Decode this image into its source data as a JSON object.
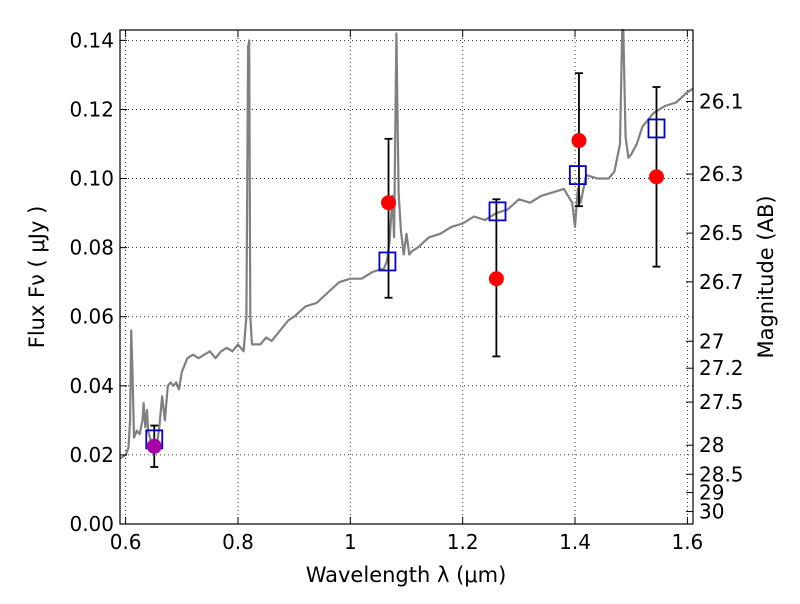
{
  "chart_data": {
    "type": "scatter",
    "xlabel": "Wavelength  λ (μm)",
    "ylabel": "Flux  Fν  ( μJy )",
    "ylabel_right": "Magnitude (AB)",
    "xlim": [
      0.59,
      1.61
    ],
    "ylim": [
      0.0,
      0.143
    ],
    "grid": true,
    "x_ticks": [
      0.6,
      0.8,
      1.0,
      1.2,
      1.4,
      1.6
    ],
    "x_tick_labels": [
      "0.6",
      "0.8",
      "1",
      "1.2",
      "1.4",
      "1.6"
    ],
    "y_ticks": [
      0.0,
      0.02,
      0.04,
      0.06,
      0.08,
      0.1,
      0.12,
      0.14
    ],
    "y_tick_labels": [
      "0.00",
      "0.02",
      "0.04",
      "0.06",
      "0.08",
      "0.10",
      "0.12",
      "0.14"
    ],
    "right_axis": {
      "ticks_flux": [
        0.1223,
        0.1013,
        0.0842,
        0.0701,
        0.0529,
        0.0451,
        0.0353,
        0.0228,
        0.0144,
        0.0091,
        0.0036
      ],
      "tick_labels": [
        "26.1",
        "26.3",
        "26.5",
        "26.7",
        "27",
        "27.2",
        "27.5",
        "28",
        "28.5",
        "29",
        "30"
      ]
    },
    "series": [
      {
        "kind": "spectrum",
        "color": "#808080",
        "x": [
          0.59,
          0.6,
          0.605,
          0.608,
          0.61,
          0.612,
          0.615,
          0.62,
          0.625,
          0.63,
          0.632,
          0.635,
          0.638,
          0.64,
          0.645,
          0.65,
          0.655,
          0.66,
          0.665,
          0.67,
          0.675,
          0.68,
          0.685,
          0.69,
          0.695,
          0.7,
          0.71,
          0.72,
          0.73,
          0.74,
          0.75,
          0.76,
          0.77,
          0.78,
          0.79,
          0.8,
          0.81,
          0.815,
          0.818,
          0.82,
          0.822,
          0.825,
          0.83,
          0.84,
          0.85,
          0.86,
          0.87,
          0.88,
          0.89,
          0.9,
          0.92,
          0.94,
          0.96,
          0.98,
          1.0,
          1.02,
          1.04,
          1.06,
          1.065,
          1.07,
          1.075,
          1.078,
          1.082,
          1.086,
          1.09,
          1.095,
          1.1,
          1.105,
          1.11,
          1.12,
          1.14,
          1.16,
          1.18,
          1.2,
          1.22,
          1.24,
          1.26,
          1.28,
          1.3,
          1.32,
          1.34,
          1.36,
          1.38,
          1.395,
          1.4,
          1.405,
          1.41,
          1.42,
          1.44,
          1.46,
          1.47,
          1.48,
          1.484,
          1.486,
          1.49,
          1.495,
          1.5,
          1.51,
          1.52,
          1.54,
          1.56,
          1.58,
          1.6,
          1.61
        ],
        "y": [
          0.019,
          0.02,
          0.022,
          0.03,
          0.056,
          0.045,
          0.025,
          0.027,
          0.026,
          0.03,
          0.035,
          0.028,
          0.033,
          0.027,
          0.024,
          0.023,
          0.022,
          0.028,
          0.037,
          0.03,
          0.04,
          0.041,
          0.04,
          0.041,
          0.039,
          0.044,
          0.048,
          0.049,
          0.048,
          0.049,
          0.05,
          0.048,
          0.05,
          0.051,
          0.05,
          0.052,
          0.05,
          0.06,
          0.138,
          0.14,
          0.06,
          0.052,
          0.052,
          0.052,
          0.054,
          0.053,
          0.055,
          0.057,
          0.059,
          0.06,
          0.063,
          0.064,
          0.067,
          0.07,
          0.071,
          0.071,
          0.073,
          0.074,
          0.076,
          0.082,
          0.095,
          0.083,
          0.142,
          0.096,
          0.085,
          0.078,
          0.084,
          0.078,
          0.079,
          0.08,
          0.083,
          0.084,
          0.086,
          0.087,
          0.089,
          0.088,
          0.09,
          0.091,
          0.094,
          0.093,
          0.095,
          0.096,
          0.097,
          0.093,
          0.086,
          0.097,
          0.093,
          0.101,
          0.1,
          0.1,
          0.102,
          0.11,
          0.143,
          0.143,
          0.112,
          0.106,
          0.107,
          0.11,
          0.115,
          0.119,
          0.121,
          0.122,
          0.125,
          0.126
        ]
      },
      {
        "kind": "observed",
        "color": "#ff0000",
        "x": [
          1.068,
          1.26,
          1.407,
          1.545
        ],
        "y": [
          0.093,
          0.071,
          0.111,
          0.1005
        ],
        "err_low": [
          0.0655,
          0.0485,
          0.092,
          0.0745
        ],
        "err_high": [
          0.1115,
          0.094,
          0.1305,
          0.1265
        ]
      },
      {
        "kind": "observed",
        "color": "#aa00aa",
        "x": [
          0.651
        ],
        "y": [
          0.0225
        ],
        "err_low": [
          0.0165
        ],
        "err_high": [
          0.0285
        ]
      },
      {
        "kind": "model",
        "color": "#0000cc",
        "marker": "square",
        "x": [
          0.651,
          1.066,
          1.262,
          1.405,
          1.545
        ],
        "y": [
          0.0245,
          0.076,
          0.0905,
          0.101,
          0.1145
        ]
      }
    ]
  }
}
